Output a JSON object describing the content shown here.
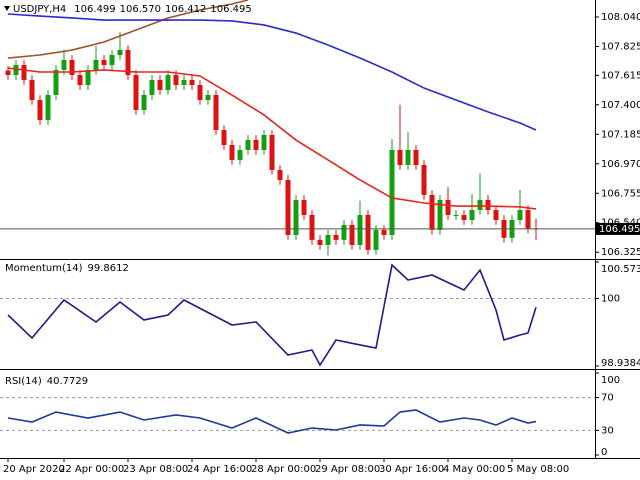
{
  "chart_data": [
    {
      "type": "candlestick",
      "title": "USDJPY,H4",
      "ohlc_labels": [
        "106.499",
        "106.570",
        "106.412",
        "106.495"
      ],
      "categories": [
        "20 Apr 2020",
        null,
        null,
        null,
        null,
        null,
        null,
        "22 Apr 00:00",
        null,
        null,
        null,
        null,
        null,
        null,
        null,
        "23 Apr 08:00",
        null,
        null,
        null,
        null,
        null,
        null,
        null,
        "24 Apr 16:00",
        null,
        null,
        null,
        null,
        null,
        null,
        null,
        "28 Apr 00:00",
        null,
        null,
        null,
        null,
        null,
        null,
        null,
        "29 Apr 08:00",
        null,
        null,
        null,
        null,
        null,
        null,
        null,
        "30 Apr 16:00",
        null,
        null,
        null,
        null,
        null,
        null,
        null,
        "4 May 00:00",
        null,
        null,
        null,
        null,
        null,
        null,
        null,
        "5 May 08:00",
        null,
        null,
        null
      ],
      "open": [
        107.65,
        107.617,
        107.69,
        107.581,
        107.435,
        107.289,
        107.472,
        107.654,
        107.727,
        107.617,
        107.544,
        107.654,
        107.727,
        107.69,
        107.763,
        107.8,
        107.617,
        107.362,
        107.472,
        107.581,
        107.508,
        107.617,
        107.544,
        107.581,
        107.544,
        107.435,
        107.472,
        107.216,
        107.107,
        106.998,
        107.071,
        107.144,
        107.071,
        107.18,
        106.925,
        106.852,
        106.451,
        106.706,
        106.597,
        106.415,
        106.378,
        106.451,
        106.415,
        106.524,
        106.378,
        106.597,
        106.342,
        106.488,
        106.451,
        107.071,
        106.961,
        107.071,
        106.961,
        106.743,
        106.488,
        106.706,
        106.597,
        106.597,
        106.56,
        106.633,
        106.706,
        106.633,
        106.56,
        106.43,
        106.56,
        106.633,
        106.499
      ],
      "high": [
        107.685,
        107.725,
        107.725,
        107.616,
        107.47,
        107.507,
        107.689,
        107.8,
        107.762,
        107.652,
        107.689,
        107.83,
        107.762,
        107.798,
        107.93,
        107.835,
        107.652,
        107.507,
        107.616,
        107.616,
        107.652,
        107.652,
        107.616,
        107.616,
        107.579,
        107.507,
        107.507,
        107.251,
        107.142,
        107.106,
        107.179,
        107.179,
        107.215,
        107.215,
        106.96,
        106.887,
        106.741,
        106.741,
        106.632,
        106.45,
        106.486,
        106.486,
        106.559,
        106.559,
        106.7,
        106.632,
        106.523,
        106.523,
        107.15,
        107.4,
        107.2,
        107.106,
        106.996,
        106.778,
        106.741,
        106.8,
        106.632,
        106.632,
        106.75,
        106.9,
        106.741,
        106.668,
        106.595,
        106.595,
        106.78,
        106.668,
        106.57
      ],
      "low": [
        107.582,
        107.582,
        107.546,
        107.4,
        107.254,
        107.254,
        107.437,
        107.619,
        107.582,
        107.509,
        107.509,
        107.619,
        107.655,
        107.655,
        107.728,
        107.582,
        107.327,
        107.327,
        107.437,
        107.473,
        107.473,
        107.509,
        107.509,
        107.509,
        107.4,
        107.4,
        107.181,
        107.072,
        106.963,
        106.963,
        107.036,
        107.036,
        107.036,
        106.89,
        106.817,
        106.416,
        106.416,
        106.562,
        106.38,
        106.343,
        106.3,
        106.38,
        106.38,
        106.343,
        106.343,
        106.307,
        106.307,
        106.416,
        106.416,
        106.926,
        106.926,
        106.926,
        106.708,
        106.453,
        106.453,
        106.562,
        106.562,
        106.525,
        106.525,
        106.598,
        106.598,
        106.525,
        106.395,
        106.395,
        106.525,
        106.464,
        106.412
      ],
      "close": [
        107.617,
        107.69,
        107.581,
        107.435,
        107.289,
        107.472,
        107.654,
        107.727,
        107.617,
        107.544,
        107.654,
        107.727,
        107.69,
        107.763,
        107.8,
        107.617,
        107.362,
        107.472,
        107.581,
        107.508,
        107.617,
        107.544,
        107.581,
        107.544,
        107.435,
        107.472,
        107.216,
        107.107,
        106.998,
        107.071,
        107.144,
        107.071,
        107.18,
        106.925,
        106.852,
        106.451,
        106.706,
        106.597,
        106.415,
        106.378,
        106.451,
        106.415,
        106.524,
        106.378,
        106.597,
        106.342,
        106.488,
        106.451,
        107.071,
        106.961,
        107.071,
        106.961,
        106.743,
        106.488,
        106.706,
        106.597,
        106.597,
        106.56,
        106.633,
        106.706,
        106.633,
        106.56,
        106.43,
        106.56,
        106.633,
        106.499,
        106.495
      ],
      "up_color": "#11a011",
      "down_color": "#e01010",
      "series": [
        {
          "color": "#a0522d",
          "x": [
            0,
            4,
            8,
            12,
            16,
            20,
            24,
            28,
            30
          ],
          "values": [
            107.741,
            107.763,
            107.799,
            107.858,
            107.945,
            108.033,
            108.091,
            108.135,
            108.164
          ]
        },
        {
          "color": "#2a2ad0",
          "x": [
            0,
            4,
            8,
            12,
            16,
            20,
            24,
            28,
            32,
            36,
            40,
            44,
            48,
            52,
            56,
            60,
            64,
            66
          ],
          "values": [
            108.062,
            108.047,
            108.033,
            108.018,
            108.018,
            108.018,
            108.018,
            108.011,
            107.982,
            107.923,
            107.836,
            107.741,
            107.639,
            107.522,
            107.435,
            107.348,
            107.267,
            107.216
          ]
        },
        {
          "color": "#e8241c",
          "x": [
            0,
            4,
            8,
            12,
            16,
            20,
            24,
            28,
            32,
            36,
            40,
            44,
            48,
            52,
            56,
            60,
            64,
            66
          ],
          "values": [
            107.668,
            107.639,
            107.639,
            107.654,
            107.639,
            107.639,
            107.61,
            107.471,
            107.326,
            107.143,
            106.998,
            106.852,
            106.721,
            106.684,
            106.662,
            106.662,
            106.655,
            106.641
          ]
        }
      ],
      "ylim": [
        106.283,
        108.164
      ],
      "yticks": [
        {
          "value": 108.04,
          "label": "108.040"
        },
        107.825,
        107.615,
        {
          "value": 107.4,
          "label": "107.400"
        },
        107.185,
        {
          "value": 106.97,
          "label": "106.970"
        },
        106.755,
        {
          "value": 106.54,
          "label": "106.540"
        },
        106.325
      ]
    },
    {
      "type": "line",
      "title": "Momentum(14)",
      "series": [
        {
          "color": "#1c1c8c",
          "x": [
            0,
            3,
            7,
            11,
            14,
            17,
            20,
            22,
            28,
            31,
            35,
            38,
            39,
            41,
            44,
            46,
            48,
            50,
            53,
            57,
            59,
            61,
            62,
            64,
            65,
            66
          ],
          "values": [
            99.74,
            99.379,
            99.976,
            99.63,
            99.944,
            99.662,
            99.74,
            99.976,
            99.583,
            99.63,
            99.111,
            99.19,
            98.954,
            99.347,
            99.269,
            99.221,
            100.526,
            100.29,
            100.369,
            100.133,
            100.447,
            99.819,
            99.347,
            99.426,
            99.457,
            99.8612
          ]
        }
      ],
      "ylim": [
        98.9384,
        100.5732
      ],
      "yticks": [
        98.9384,
        100,
        100.5732
      ],
      "levels": [
        100
      ]
    },
    {
      "type": "line",
      "title": "RSI(14)",
      "series": [
        {
          "color": "#1c3a9a",
          "x": [
            0,
            3,
            6,
            10,
            14,
            17,
            21,
            24,
            28,
            31,
            35,
            38,
            41,
            44,
            47,
            49,
            51,
            54,
            57,
            59,
            61,
            63,
            65,
            66
          ],
          "values": [
            45.1,
            40.2,
            52.4,
            45.1,
            52.4,
            42.7,
            48.8,
            45.1,
            32.9,
            45.1,
            26.8,
            32.9,
            30.5,
            36.6,
            35.4,
            52.4,
            54.9,
            40.2,
            45.1,
            42.7,
            36.6,
            45.1,
            39.0,
            40.7729
          ]
        }
      ],
      "ylim": [
        0,
        100
      ],
      "yticks": [
        0,
        30,
        70,
        100
      ],
      "levels": [
        30,
        70
      ]
    }
  ]
}
